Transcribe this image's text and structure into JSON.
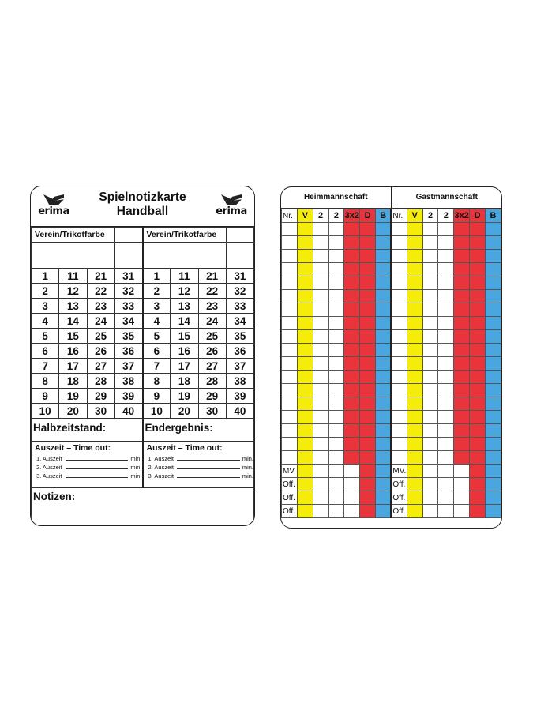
{
  "left_card": {
    "title_line1": "Spielnotizkarte",
    "title_line2": "Handball",
    "logo_text": "erima",
    "team_label": "Verein/Trikotfarbe",
    "numbers": [
      [
        1,
        11,
        21,
        31
      ],
      [
        2,
        12,
        22,
        32
      ],
      [
        3,
        13,
        23,
        33
      ],
      [
        4,
        14,
        24,
        34
      ],
      [
        5,
        15,
        25,
        35
      ],
      [
        6,
        16,
        26,
        36
      ],
      [
        7,
        17,
        27,
        37
      ],
      [
        8,
        18,
        28,
        38
      ],
      [
        9,
        19,
        29,
        39
      ],
      [
        10,
        20,
        30,
        40
      ]
    ],
    "halftime_label": "Halbzeitstand:",
    "final_label": "Endergebnis:",
    "timeout_title": "Auszeit – Time out:",
    "timeouts": [
      "1. Auszeit",
      "2. Auszeit",
      "3. Auszeit"
    ],
    "min_label": "min.",
    "notes_label": "Notizen:"
  },
  "right_card": {
    "home_label": "Heimmannschaft",
    "guest_label": "Gastmannschaft",
    "columns": [
      "Nr.",
      "V",
      "2",
      "2",
      "3x2",
      "D",
      "B"
    ],
    "player_rows": 18,
    "official_rows": [
      "MV.",
      "Off.",
      "Off.",
      "Off."
    ],
    "colors": {
      "V": "#f6ec0c",
      "3x2": "#e8343a",
      "D": "#e8343a",
      "B": "#4aa6df"
    }
  }
}
